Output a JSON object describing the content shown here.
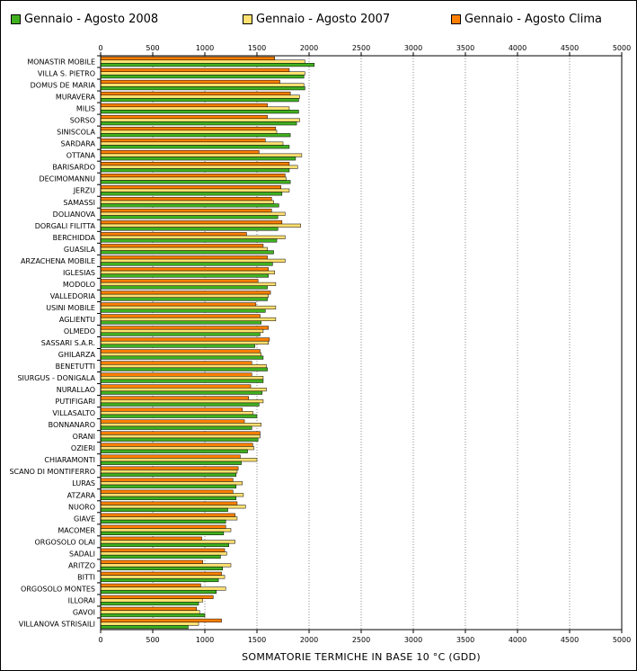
{
  "chart_data": {
    "type": "bar",
    "orientation": "horizontal",
    "xlabel": "SOMMATORIE TERMICHE IN BASE 10 °C (GDD)",
    "xlim": [
      0,
      5000
    ],
    "xticks": [
      0,
      500,
      1000,
      1500,
      2000,
      2500,
      3000,
      3500,
      4000,
      4500,
      5000
    ],
    "grid": "vertical dotted",
    "legend_position": "top",
    "categories": [
      "MONASTIR MOBILE",
      "VILLA S. PIETRO",
      "DOMUS DE MARIA",
      "MURAVERA",
      "MILIS",
      "SORSO",
      "SINISCOLA",
      "SARDARA",
      "OTTANA",
      "BARISARDO",
      "DECIMOMANNU",
      "JERZU",
      "SAMASSI",
      "DOLIANOVA",
      "DORGALI FILITTA",
      "BERCHIDDA",
      "GUASILA",
      "ARZACHENA MOBILE",
      "IGLESIAS",
      "MODOLO",
      "VALLEDORIA",
      "USINI MOBILE",
      "AGLIENTU",
      "OLMEDO",
      "SASSARI S.A.R.",
      "GHILARZA",
      "BENETUTTI",
      "SIURGUS - DONIGALA",
      "NURALLAO",
      "PUTIFIGARI",
      "VILLASALTO",
      "BONNANARO",
      "ORANI",
      "OZIERI",
      "CHIARAMONTI",
      "SCANO DI MONTIFERRO",
      "LURAS",
      "ATZARA",
      "NUORO",
      "GIAVE",
      "MACOMER",
      "ORGOSOLO OLAI",
      "SADALI",
      "ARITZO",
      "BITTI",
      "ORGOSOLO MONTES",
      "ILLORAI",
      "GAVOI",
      "VILLANOVA STRISAILI"
    ],
    "series": [
      {
        "name": "Gennaio - Agosto Clima",
        "color": "#ff8000",
        "values": [
          1670,
          1810,
          1720,
          1820,
          1600,
          1600,
          1680,
          1580,
          1520,
          1810,
          1770,
          1730,
          1640,
          1640,
          1740,
          1400,
          1560,
          1600,
          1610,
          1510,
          1630,
          1490,
          1530,
          1610,
          1620,
          1530,
          1450,
          1450,
          1440,
          1420,
          1360,
          1380,
          1530,
          1460,
          1340,
          1320,
          1270,
          1270,
          1310,
          1290,
          1200,
          970,
          1190,
          980,
          1160,
          960,
          1080,
          920,
          1160
        ]
      },
      {
        "name": "Gennaio - Agosto 2007",
        "color": "#ffe070",
        "values": [
          1960,
          1960,
          1950,
          1910,
          1810,
          1910,
          1690,
          1750,
          1930,
          1890,
          1780,
          1810,
          1660,
          1770,
          1920,
          1770,
          1600,
          1770,
          1670,
          1680,
          1610,
          1680,
          1680,
          1560,
          1610,
          1540,
          1590,
          1560,
          1590,
          1560,
          1460,
          1540,
          1530,
          1470,
          1500,
          1310,
          1360,
          1370,
          1390,
          1310,
          1250,
          1290,
          1210,
          1250,
          1190,
          1200,
          980,
          950,
          940
        ]
      },
      {
        "name": "Gennaio - Agosto 2008",
        "color": "#40b020",
        "values": [
          2050,
          1950,
          1960,
          1900,
          1900,
          1880,
          1820,
          1810,
          1870,
          1810,
          1820,
          1740,
          1710,
          1700,
          1700,
          1690,
          1660,
          1650,
          1610,
          1600,
          1600,
          1580,
          1540,
          1530,
          1480,
          1560,
          1600,
          1560,
          1550,
          1520,
          1500,
          1450,
          1510,
          1410,
          1350,
          1300,
          1300,
          1300,
          1220,
          1200,
          1180,
          1230,
          1150,
          1170,
          1130,
          1110,
          940,
          1000,
          840
        ]
      }
    ]
  },
  "legend": [
    {
      "label": "Gennaio - Agosto 2008",
      "color": "#40b020"
    },
    {
      "label": "Gennaio - Agosto 2007",
      "color": "#ffe070"
    },
    {
      "label": "Gennaio - Agosto Clima",
      "color": "#ff8000"
    }
  ]
}
